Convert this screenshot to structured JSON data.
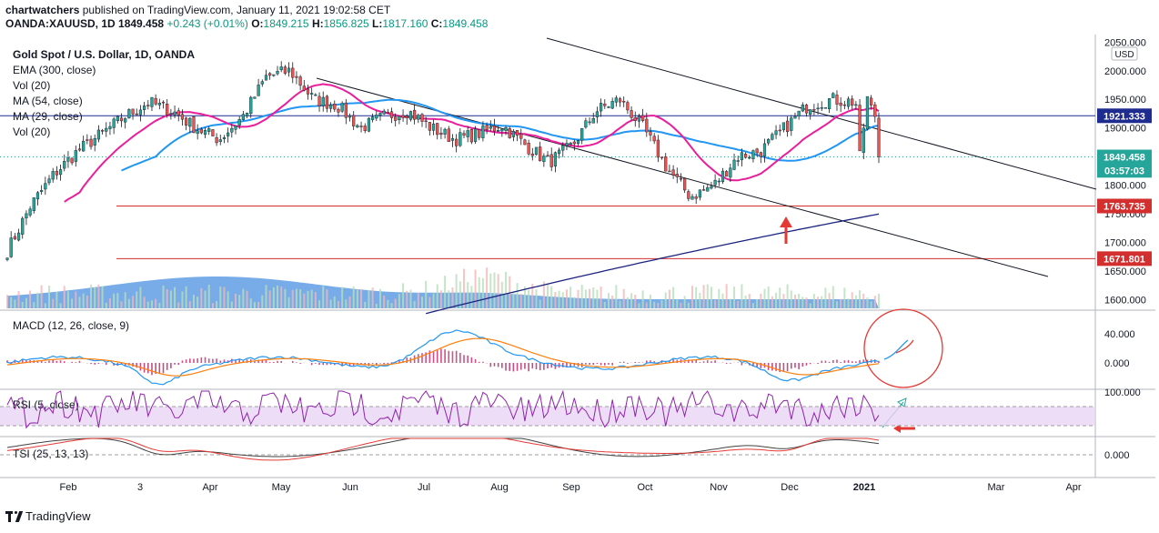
{
  "header": {
    "publisher": "chartwatchers",
    "published_text": "published on TradingView.com, January 11, 2021 19:02:58 CET",
    "symbol": "OANDA:XAUUSD, 1D",
    "last": "1849.458",
    "change": "+0.243 (+0.01%)",
    "o_label": "O:",
    "o_value": "1849.215",
    "h_label": "H:",
    "h_value": "1856.825",
    "l_label": "L:",
    "l_value": "1817.160",
    "c_label": "C:",
    "c_value": "1849.458"
  },
  "legend": {
    "title": "Gold Spot / U.S. Dollar, 1D, OANDA",
    "lines": [
      "EMA (300, close)",
      "Vol (20)",
      "MA (54, close)",
      "MA (29, close)",
      "Vol (20)"
    ]
  },
  "currency": "USD",
  "price_axis": {
    "ticks": [
      "2050.000",
      "2000.000",
      "1950.000",
      "1900.000",
      "1850.000",
      "1800.000",
      "1750.000",
      "1700.000",
      "1650.000",
      "1600.000"
    ],
    "tick_values": [
      2050,
      2000,
      1950,
      1900,
      1850,
      1800,
      1750,
      1700,
      1650,
      1600
    ],
    "badges": [
      {
        "text": "1921.333",
        "value": 1921.333,
        "color": "#1e2b8f"
      },
      {
        "text": "1849.458",
        "value": 1849.458,
        "color": "#26a69a"
      },
      {
        "text": "03:57:03",
        "value": 1826,
        "color": "#26a69a"
      },
      {
        "text": "1763.735",
        "value": 1763.735,
        "color": "#d32f2f"
      },
      {
        "text": "1671.801",
        "value": 1671.801,
        "color": "#d32f2f"
      }
    ]
  },
  "time_axis": [
    "Feb",
    "3",
    "Apr",
    "May",
    "Jun",
    "Jul",
    "Aug",
    "Sep",
    "Oct",
    "Nov",
    "Dec",
    "2021",
    "Mar",
    "Apr"
  ],
  "indicators": {
    "macd": {
      "label": "MACD (12, 26, close, 9)",
      "ticks": [
        "40.000",
        "0.000"
      ],
      "tick_values": [
        40,
        0
      ]
    },
    "rsi": {
      "label": "RSI (5, close)",
      "ticks": [
        "100.000"
      ],
      "tick_values": [
        100
      ]
    },
    "tsi": {
      "label": "TSI (25, 13, 13)",
      "ticks": [
        "0.000"
      ],
      "tick_values": [
        0
      ]
    }
  },
  "colors": {
    "up": "#26a69a",
    "down": "#ef5350",
    "ma54": "#2196f3",
    "ma29": "#e91e9c",
    "ema300": "#1a237e",
    "level": "#d32f2f",
    "resistance": "#1e2b8f",
    "annotation": "#e53935"
  },
  "chart_data": {
    "type": "candlestick",
    "title": "Gold Spot / U.S. Dollar, 1D, OANDA",
    "ylim": [
      1585,
      2060
    ],
    "horizontal_levels": [
      1921.333,
      1763.735,
      1671.801
    ],
    "trend_anchor_prices": [
      1685,
      1765,
      1820,
      1860,
      1890,
      1920,
      1945,
      1930,
      1900,
      1880,
      1920,
      1990,
      2000,
      1950,
      1940,
      1900,
      1920,
      1930,
      1900,
      1880,
      1890,
      1905,
      1870,
      1840,
      1870,
      1930,
      1950,
      1900,
      1830,
      1780,
      1800,
      1850,
      1860,
      1900,
      1940,
      1950,
      1945,
      1848
    ],
    "recent_closes": [
      1860,
      1900,
      1955,
      1940,
      1920,
      1849.458
    ]
  },
  "footer": {
    "brand": "TradingView"
  }
}
